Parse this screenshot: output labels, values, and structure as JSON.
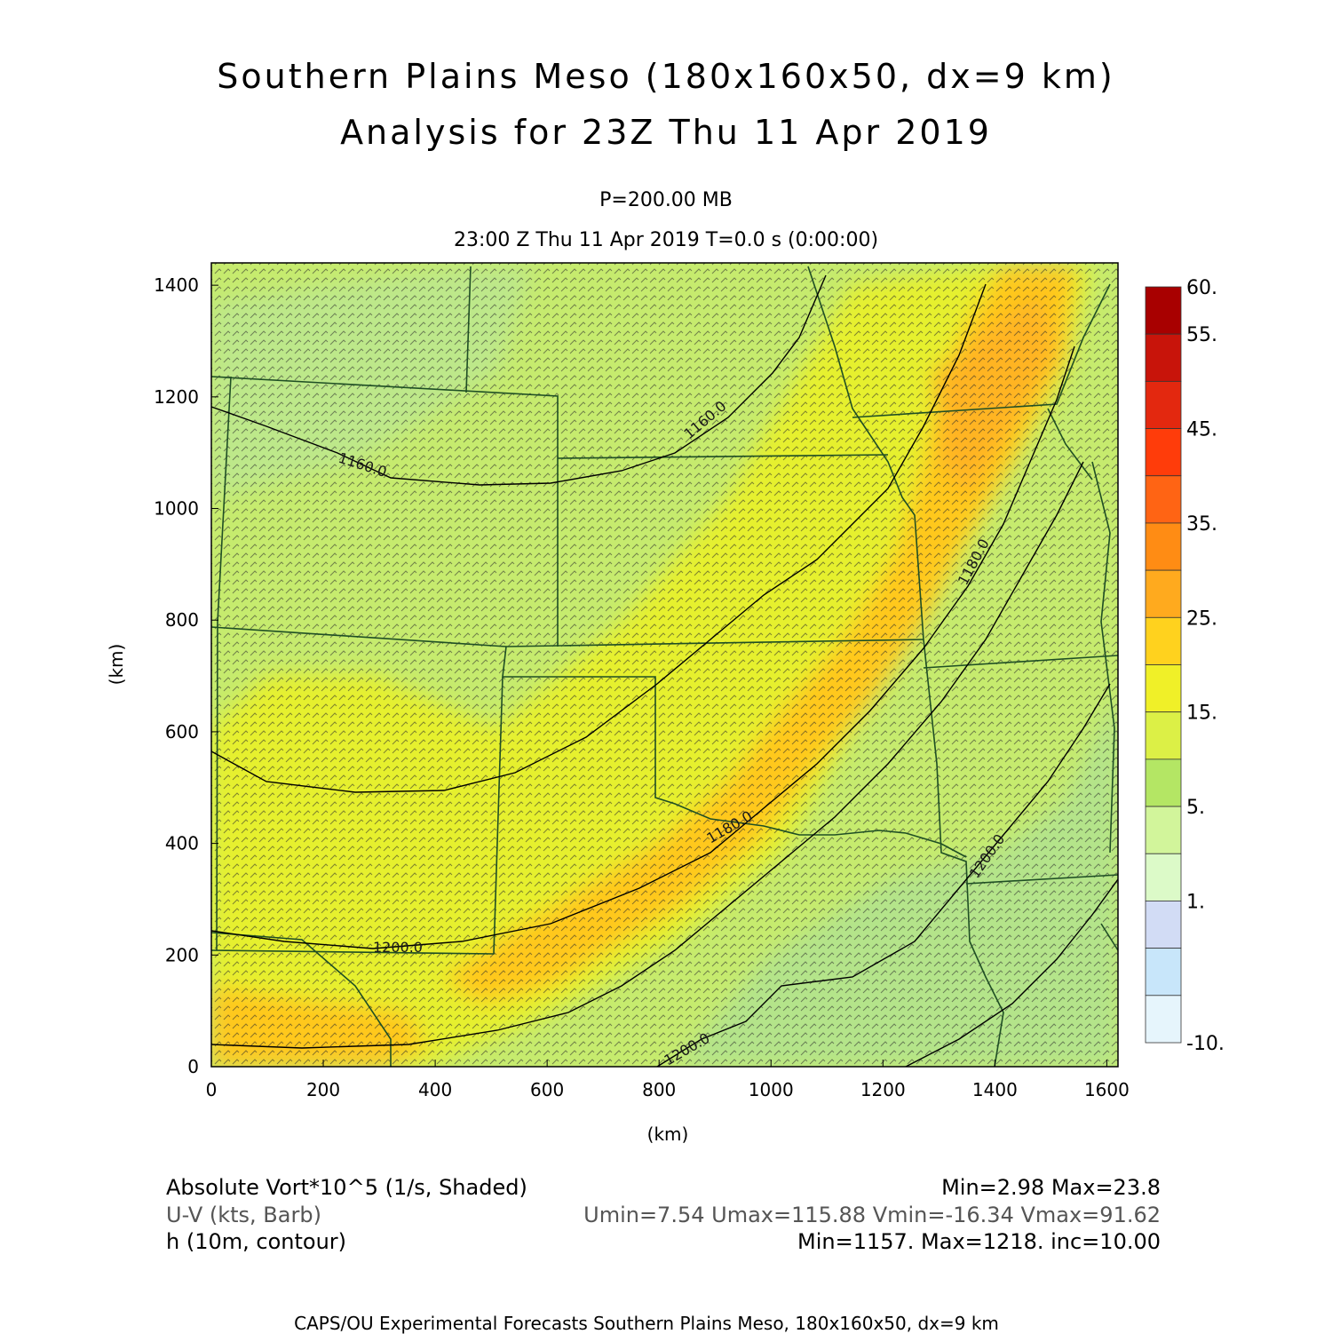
{
  "header": {
    "title_line1": "Southern Plains Meso (180x160x50, dx=9 km)",
    "title_line2": "Analysis for 23Z Thu 11 Apr 2019",
    "level": "P=200.00 MB",
    "valid_time": "23:00 Z Thu 11 Apr 2019    T=0.0 s (0:00:00)"
  },
  "axes": {
    "x_label": "(km)",
    "y_label": "(km)",
    "x_ticks": [
      "0",
      "200",
      "400",
      "600",
      "800",
      "1000",
      "1200",
      "1400",
      "1600"
    ],
    "y_ticks": [
      "0",
      "200",
      "400",
      "600",
      "800",
      "1000",
      "1200",
      "1400"
    ],
    "x_range": [
      0,
      1620
    ],
    "y_range": [
      0,
      1440
    ]
  },
  "colorbar": {
    "labels": [
      "60.",
      "55.",
      "45.",
      "35.",
      "25.",
      "15.",
      "5.",
      "1.",
      "-10."
    ],
    "colors": [
      "#a80000",
      "#c8140a",
      "#e3280f",
      "#ff3c0a",
      "#ff6414",
      "#ff8c14",
      "#ffaa1e",
      "#ffd21e",
      "#f0f028",
      "#dcf046",
      "#b4e664",
      "#d2f59b",
      "#dcfac8",
      "#d2dcf5",
      "#c8e6fa",
      "#e6f5fc"
    ]
  },
  "contours": {
    "labels": [
      "1160.0",
      "1160.0",
      "1180.0",
      "1180.0",
      "1200.0",
      "1200.0",
      "1200.0"
    ]
  },
  "legend": {
    "row1_left": "Absolute Vort*10^5 (1/s, Shaded)",
    "row1_right": "Min=2.98 Max=23.8",
    "row2_left": "U-V (kts, Barb)",
    "row2_right": "Umin=7.54 Umax=115.88 Vmin=-16.34 Vmax=91.62",
    "row3_left": "h (10m, contour)",
    "row3_right": "Min=1157. Max=1218. inc=10.00"
  },
  "footer": "CAPS/OU Experimental Forecasts  Southern Plains Meso, 180x160x50, dx=9 km"
}
